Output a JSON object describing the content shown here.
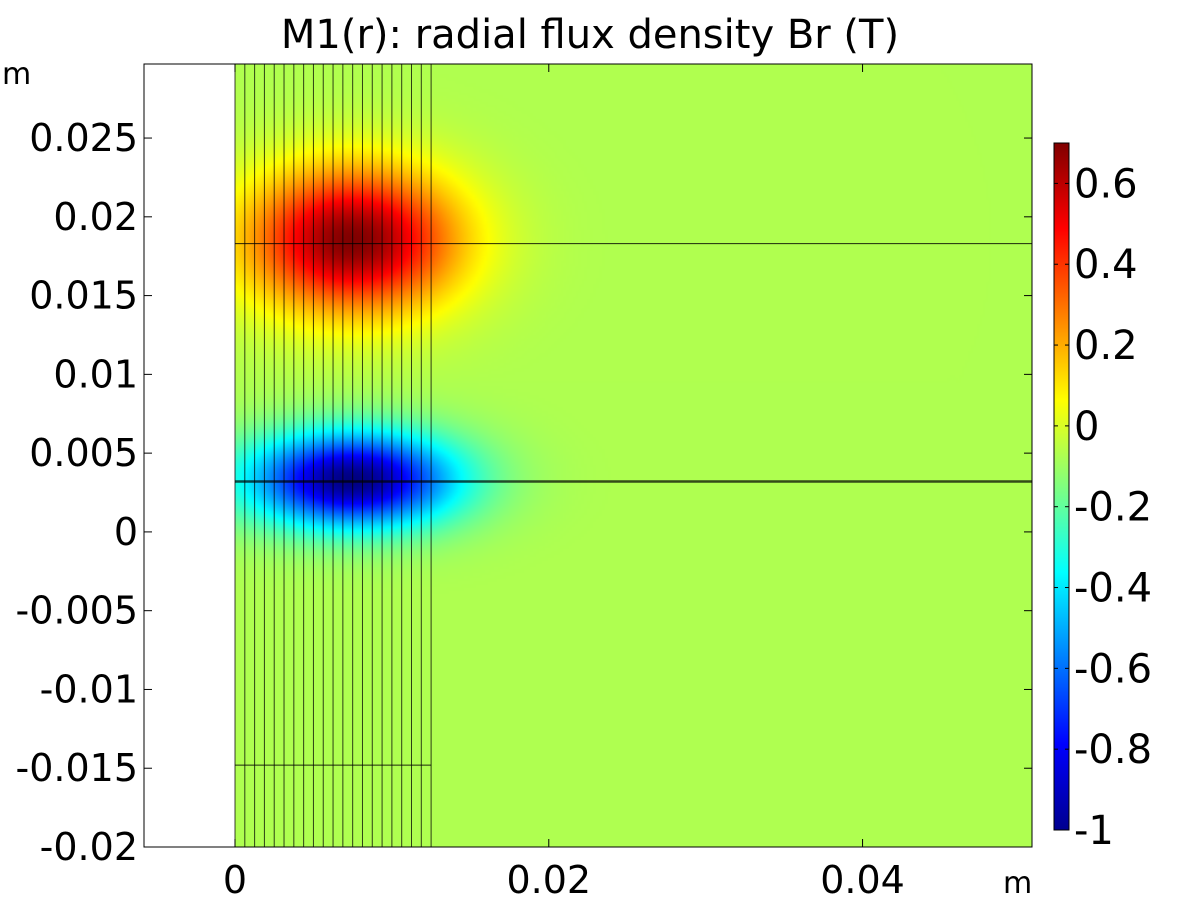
{
  "chart_data": {
    "type": "heatmap",
    "title": "M1(r): radial flux density Br (T)",
    "xlabel": "m",
    "ylabel": "m",
    "xlim": [
      -0.0058,
      0.0508
    ],
    "ylim": [
      -0.02,
      0.0297
    ],
    "x_ticks": [
      {
        "value": 0,
        "label": "0"
      },
      {
        "value": 0.02,
        "label": "0.02"
      },
      {
        "value": 0.04,
        "label": "0.04"
      }
    ],
    "y_ticks": [
      {
        "value": 0.025,
        "label": "0.025"
      },
      {
        "value": 0.02,
        "label": "0.02"
      },
      {
        "value": 0.015,
        "label": "0.015"
      },
      {
        "value": 0.01,
        "label": "0.01"
      },
      {
        "value": 0.005,
        "label": "0.005"
      },
      {
        "value": 0,
        "label": "0"
      },
      {
        "value": -0.005,
        "label": "-0.005"
      },
      {
        "value": -0.01,
        "label": "-0.01"
      },
      {
        "value": -0.015,
        "label": "-0.015"
      },
      {
        "value": -0.02,
        "label": "-0.02"
      }
    ],
    "colorbar": {
      "range": [
        -1,
        0.7
      ],
      "colormap": "jet",
      "ticks": [
        {
          "value": 0.6,
          "label": "0.6"
        },
        {
          "value": 0.4,
          "label": "0.4"
        },
        {
          "value": 0.2,
          "label": "0.2"
        },
        {
          "value": 0,
          "label": "0"
        },
        {
          "value": -0.2,
          "label": "-0.2"
        },
        {
          "value": -0.4,
          "label": "-0.4"
        },
        {
          "value": -0.6,
          "label": "-0.6"
        },
        {
          "value": -0.8,
          "label": "-0.8"
        },
        {
          "value": -1,
          "label": "-1"
        }
      ]
    },
    "background_value": -0.07,
    "field_features": [
      {
        "name": "positive-lobe",
        "x": 0.0075,
        "y": 0.0185,
        "peak": 0.7,
        "rx": 0.0065,
        "ry": 0.0045
      },
      {
        "name": "negative-lobe",
        "x": 0.0075,
        "y": 0.0033,
        "peak": -1.0,
        "rx": 0.0065,
        "ry": 0.003
      }
    ],
    "domain_x_min": 0,
    "vertical_grid_lines": {
      "x_start": 0,
      "x_end": 0.0125,
      "count": 20
    },
    "horizontal_boundaries": [
      {
        "y": 0.0183,
        "x_start": 0,
        "x_end": 0.0508,
        "emphasis": "thin"
      },
      {
        "y": 0.0032,
        "x_start": 0,
        "x_end": 0.0508,
        "emphasis": "thick"
      },
      {
        "y": -0.0148,
        "x_start": 0,
        "x_end": 0.0125,
        "emphasis": "thin"
      }
    ]
  }
}
